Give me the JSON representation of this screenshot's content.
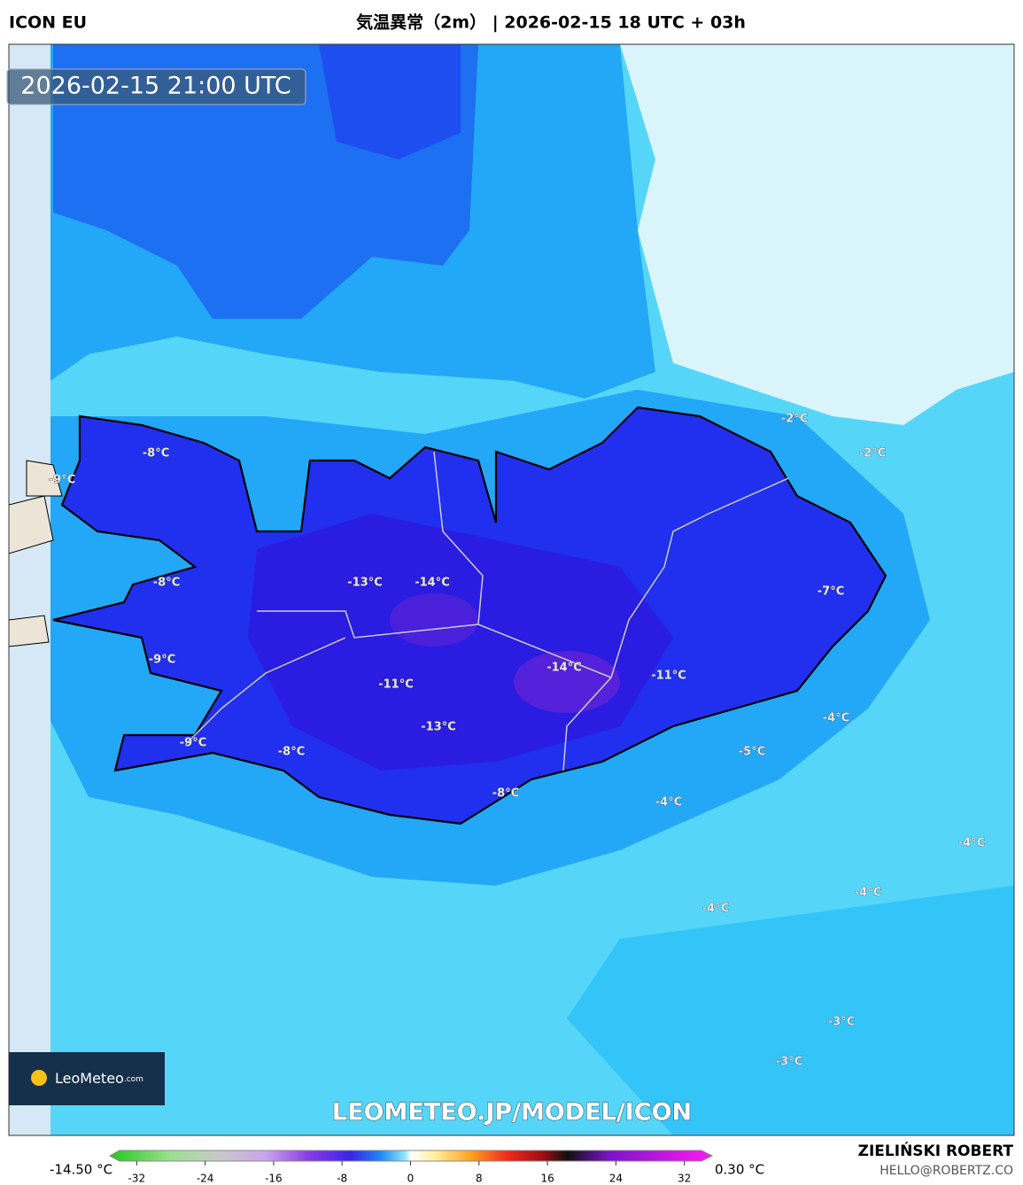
{
  "header": {
    "model": "ICON EU",
    "title": "気温異常（2m） | 2026-02-15 18 UTC + 03h"
  },
  "timestamp": "2026-02-15 21:00 UTC",
  "logo": {
    "brand_main": "LeoMeteo",
    "brand_suffix": ".com"
  },
  "watermark": "LEOMETEO.JP/MODEL/ICON",
  "map_labels": [
    "-8°C",
    "-9°C",
    "-8°C",
    "-13°C",
    "-14°C",
    "-14°C",
    "-11°C",
    "-11°C",
    "-9°C",
    "-13°C",
    "-9°C",
    "-8°C",
    "-8°C",
    "-7°C",
    "-2°C",
    "-2°C",
    "-4°C",
    "-5°C",
    "-4°C",
    "-4°C",
    "-4°C",
    "-4°C",
    "-3°C",
    "-3°C"
  ],
  "colorbar": {
    "min_label": "-14.50 °C",
    "max_label": "0.30 °C",
    "lim": [
      -34,
      34
    ],
    "ticks": [
      -32,
      -24,
      -16,
      -8,
      0,
      8,
      16,
      24,
      32
    ]
  },
  "credits": {
    "author": "ZIELIŃSKI ROBERT",
    "email": "HELLO@ROBERTZ.CO"
  }
}
